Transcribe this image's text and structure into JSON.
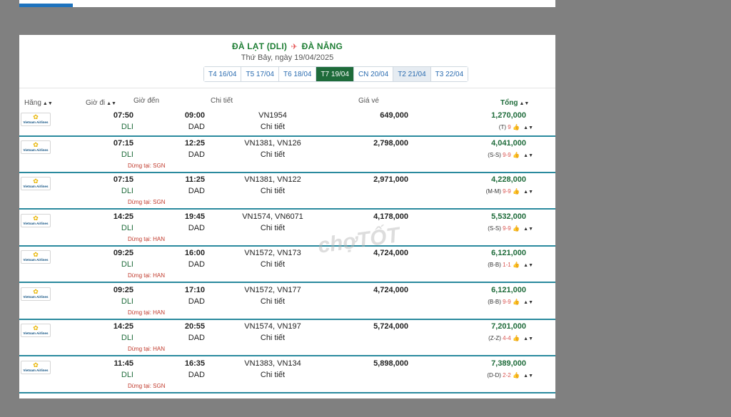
{
  "route": {
    "origin": "ĐÀ LẠT (DLI)",
    "destination": "ĐÀ NẴNG",
    "date_line": "Thứ Bảy, ngày 19/04/2025"
  },
  "days": [
    {
      "label": "T4 16/04",
      "state": "normal"
    },
    {
      "label": "T5 17/04",
      "state": "normal"
    },
    {
      "label": "T6 18/04",
      "state": "normal"
    },
    {
      "label": "T7 19/04",
      "state": "active"
    },
    {
      "label": "CN 20/04",
      "state": "normal"
    },
    {
      "label": "T2 21/04",
      "state": "hover"
    },
    {
      "label": "T3 22/04",
      "state": "normal"
    }
  ],
  "columns": {
    "airline": "Hãng",
    "depart": "Giờ đi",
    "arrive": "Giờ đến",
    "detail": "Chi tiết",
    "fare": "Giá vé",
    "total": "Tổng"
  },
  "airline": {
    "logo_text": "Vietnam Airlines",
    "logo_icon": "lotus-icon"
  },
  "detail_link": "Chi tiết",
  "flights": [
    {
      "dep_time": "07:50",
      "dep_code": "DLI",
      "arr_time": "09:00",
      "arr_code": "DAD",
      "flight": "VN1954",
      "fare": "649,000",
      "total": "1,270,000",
      "cls": "(T)",
      "seats": "9",
      "stop": ""
    },
    {
      "dep_time": "07:15",
      "dep_code": "DLI",
      "arr_time": "12:25",
      "arr_code": "DAD",
      "flight": "VN1381, VN126",
      "fare": "2,798,000",
      "total": "4,041,000",
      "cls": "(S-S)",
      "seats": "9-9",
      "stop": "Dừng tại: SGN"
    },
    {
      "dep_time": "07:15",
      "dep_code": "DLI",
      "arr_time": "11:25",
      "arr_code": "DAD",
      "flight": "VN1381, VN122",
      "fare": "2,971,000",
      "total": "4,228,000",
      "cls": "(M-M)",
      "seats": "9-9",
      "stop": "Dừng tại: SGN"
    },
    {
      "dep_time": "14:25",
      "dep_code": "DLI",
      "arr_time": "19:45",
      "arr_code": "DAD",
      "flight": "VN1574, VN6071",
      "fare": "4,178,000",
      "total": "5,532,000",
      "cls": "(S-S)",
      "seats": "9-9",
      "stop": "Dừng tại: HAN"
    },
    {
      "dep_time": "09:25",
      "dep_code": "DLI",
      "arr_time": "16:00",
      "arr_code": "DAD",
      "flight": "VN1572, VN173",
      "fare": "4,724,000",
      "total": "6,121,000",
      "cls": "(B-B)",
      "seats": "1-1",
      "stop": "Dừng tại: HAN"
    },
    {
      "dep_time": "09:25",
      "dep_code": "DLI",
      "arr_time": "17:10",
      "arr_code": "DAD",
      "flight": "VN1572, VN177",
      "fare": "4,724,000",
      "total": "6,121,000",
      "cls": "(B-B)",
      "seats": "9-9",
      "stop": "Dừng tại: HAN"
    },
    {
      "dep_time": "14:25",
      "dep_code": "DLI",
      "arr_time": "20:55",
      "arr_code": "DAD",
      "flight": "VN1574, VN197",
      "fare": "5,724,000",
      "total": "7,201,000",
      "cls": "(Z-Z)",
      "seats": "4-4",
      "stop": "Dừng tại: HAN"
    },
    {
      "dep_time": "11:45",
      "dep_code": "DLI",
      "arr_time": "16:35",
      "arr_code": "DAD",
      "flight": "VN1383, VN134",
      "fare": "5,898,000",
      "total": "7,389,000",
      "cls": "(D-D)",
      "seats": "2-2",
      "stop": "Dừng tại: SGN"
    }
  ],
  "watermark": "chợTỐT",
  "colors": {
    "accent_green": "#1e6b3a",
    "row_divider": "#2a8a9e",
    "stop_red": "#c0392b"
  }
}
